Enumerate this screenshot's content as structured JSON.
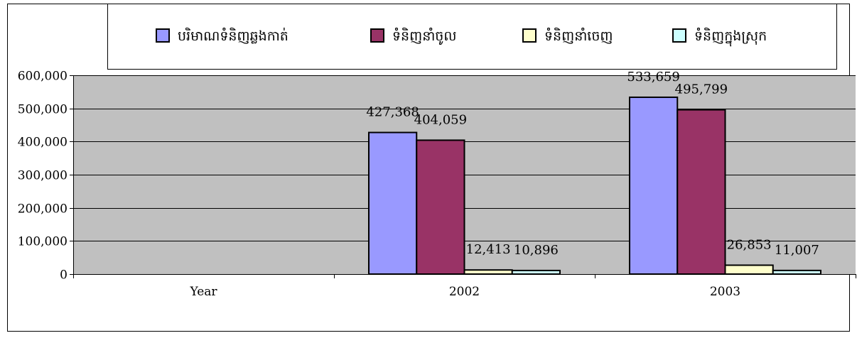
{
  "chart_data": {
    "type": "bar",
    "categories": [
      "Year",
      "2002",
      "2003"
    ],
    "series": [
      {
        "name": "បរិមាណទំនិញឆ្លងកាត់",
        "values": [
          null,
          427368,
          533659
        ],
        "labels": [
          "",
          "427,368",
          "533,659"
        ],
        "color": "#9999ff"
      },
      {
        "name": "ទំនិញនាំចូល",
        "values": [
          null,
          404059,
          495799
        ],
        "labels": [
          "",
          "404,059",
          "495,799"
        ],
        "color": "#993366"
      },
      {
        "name": "ទំនិញនាំចេញ",
        "values": [
          null,
          12413,
          26853
        ],
        "labels": [
          "",
          "12,413",
          "26,853"
        ],
        "color": "#ffffcc"
      },
      {
        "name": "ទំនិញក្នុងស្រុក",
        "values": [
          null,
          10896,
          11007
        ],
        "labels": [
          "",
          "10,896",
          "11,007"
        ],
        "color": "#ccffff"
      }
    ],
    "ylim": [
      0,
      600000
    ],
    "yticks": [
      0,
      100000,
      200000,
      300000,
      400000,
      500000,
      600000
    ],
    "ytick_labels": [
      "0",
      "100,000",
      "200,000",
      "300,000",
      "400,000",
      "500,000",
      "600,000"
    ],
    "grid": true,
    "legend_position": "top",
    "plot_background": "#c0c0c0"
  }
}
